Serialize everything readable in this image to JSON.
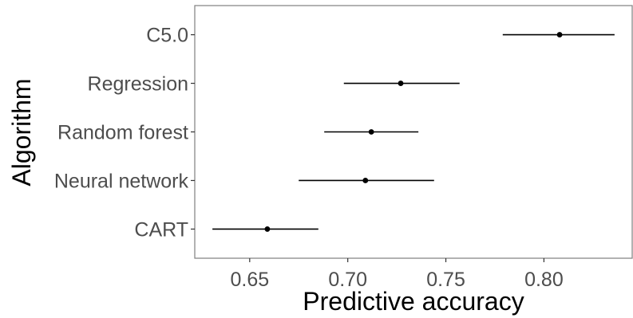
{
  "chart_data": {
    "type": "scatter",
    "xlabel": "Predictive accuracy",
    "ylabel": "Algorithm",
    "xlim": [
      0.622,
      0.845
    ],
    "xticks": [
      0.65,
      0.7,
      0.75,
      0.8
    ],
    "xtick_labels": [
      "0.65",
      "0.70",
      "0.75",
      "0.80"
    ],
    "grid": false,
    "legend": "none",
    "categories": [
      "C5.0",
      "Regression",
      "Random forest",
      "Neural network",
      "CART"
    ],
    "points": [
      {
        "label": "C5.0",
        "estimate": 0.808,
        "lower": 0.779,
        "upper": 0.836
      },
      {
        "label": "Regression",
        "estimate": 0.727,
        "lower": 0.698,
        "upper": 0.757
      },
      {
        "label": "Random forest",
        "estimate": 0.712,
        "lower": 0.688,
        "upper": 0.736
      },
      {
        "label": "Neural network",
        "estimate": 0.709,
        "lower": 0.675,
        "upper": 0.744
      },
      {
        "label": "CART",
        "estimate": 0.659,
        "lower": 0.631,
        "upper": 0.685
      }
    ],
    "colors": {
      "marks": "#000000",
      "panel_border": "#7f7f7f",
      "tick_text": "#4d4d4d"
    }
  }
}
